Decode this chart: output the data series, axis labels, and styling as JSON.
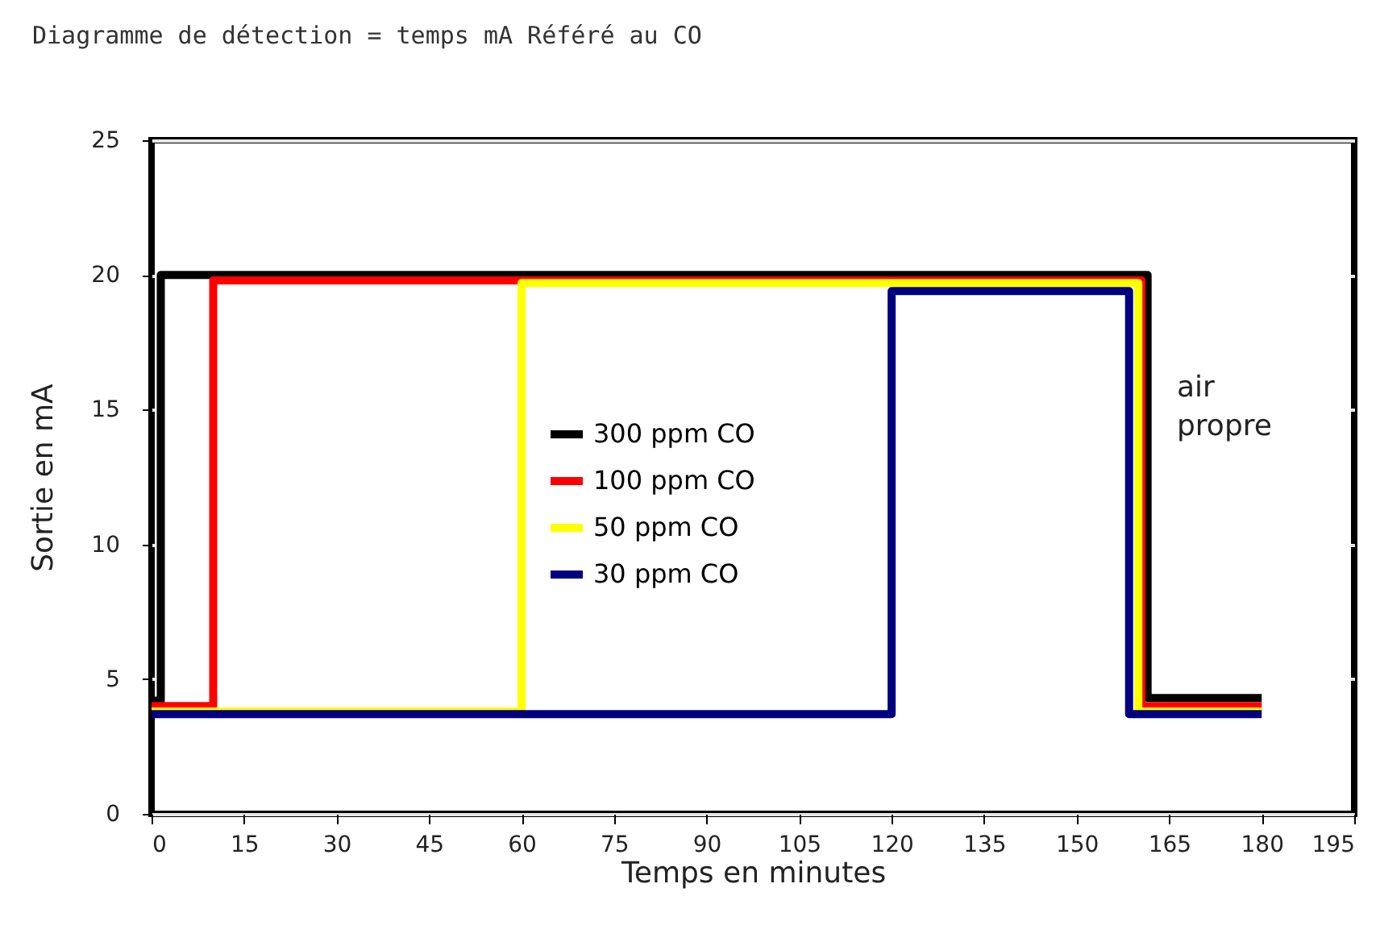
{
  "chart_data": {
    "type": "line",
    "title": "Diagramme de détection = temps mA Référé au CO",
    "xlabel": "Temps en minutes",
    "ylabel": "Sortie en mA",
    "xlim": [
      0,
      195
    ],
    "xticks": [
      0,
      15,
      30,
      45,
      60,
      75,
      90,
      105,
      120,
      135,
      150,
      165,
      180,
      195
    ],
    "ylim": [
      0,
      25
    ],
    "yticks": [
      0,
      5,
      10,
      15,
      20,
      25
    ],
    "grid": "y",
    "legend": "left",
    "marker": "none",
    "line_style": "solid",
    "annotations": [
      "air propre"
    ],
    "series": [
      {
        "name": "300 ppm CO",
        "color": "#000000",
        "x": [
          0,
          1.5,
          1.5,
          161.5,
          161.5,
          180
        ],
        "values": [
          4.2,
          4.2,
          20,
          20,
          4.3,
          4.3
        ]
      },
      {
        "name": "100 ppm CO",
        "color": "#ff0000",
        "x": [
          0,
          10,
          10,
          160.5,
          160.5,
          180
        ],
        "values": [
          4,
          4,
          19.8,
          19.8,
          4,
          4
        ]
      },
      {
        "name": "50 ppm CO",
        "color": "#ffff00",
        "x": [
          0,
          60,
          60,
          160,
          160,
          180
        ],
        "values": [
          3.8,
          3.8,
          19.7,
          19.7,
          3.8,
          3.8
        ]
      },
      {
        "name": "30 ppm CO",
        "color": "#000080",
        "x": [
          0,
          120,
          120,
          158.5,
          158.5,
          180
        ],
        "values": [
          3.7,
          3.7,
          19.4,
          19.4,
          3.7,
          3.7
        ]
      }
    ]
  }
}
